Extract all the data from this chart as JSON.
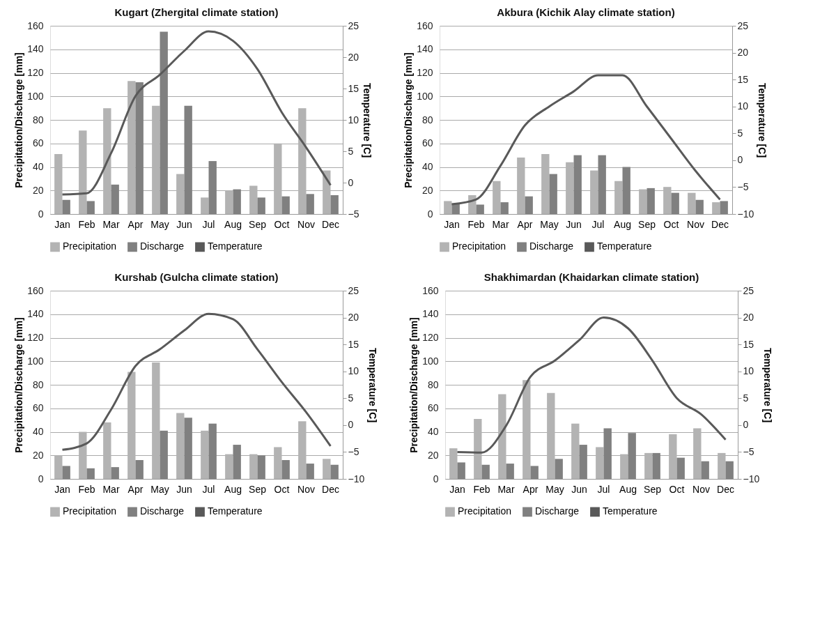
{
  "chart_data": [
    {
      "type": "bar",
      "title": "Kugart (Zhergital climate station)",
      "ylabel": "Precipitation/Discharge [mm]",
      "y2label": "Temperature [C]",
      "categories": [
        "Jan",
        "Feb",
        "Mar",
        "Apr",
        "May",
        "Jun",
        "Jul",
        "Aug",
        "Sep",
        "Oct",
        "Nov",
        "Dec"
      ],
      "series": [
        {
          "name": "Precipitation",
          "color": "#b3b3b3",
          "values": [
            51,
            71,
            90,
            113,
            92,
            34,
            14,
            20,
            24,
            60,
            90,
            37
          ]
        },
        {
          "name": "Discharge",
          "color": "#808080",
          "values": [
            12,
            11,
            25,
            112,
            155,
            92,
            45,
            21,
            14,
            15,
            17,
            16
          ]
        },
        {
          "name": "Temperature",
          "color": "#595959",
          "type": "line",
          "axis": "y2",
          "values": [
            -1.9,
            -1.7,
            4.7,
            13.8,
            17.2,
            21,
            24.1,
            22.6,
            18.1,
            11.2,
            5.6,
            -0.4
          ]
        }
      ],
      "ylim": [
        0,
        160
      ],
      "yticks": [
        0,
        20,
        40,
        60,
        80,
        100,
        120,
        140,
        160
      ],
      "y2lim": [
        -5,
        25
      ],
      "y2ticks": [
        -5,
        0,
        5,
        10,
        15,
        20,
        25
      ],
      "grid": "y",
      "legend": "bottom",
      "marker": "none"
    },
    {
      "type": "bar",
      "title": "Akbura (Kichik Alay climate station)",
      "ylabel": "Precipitation/Discharge [mm]",
      "y2label": "Temperature [C]",
      "categories": [
        "Jan",
        "Feb",
        "Mar",
        "Apr",
        "May",
        "Jun",
        "Jul",
        "Aug",
        "Sep",
        "Oct",
        "Nov",
        "Dec"
      ],
      "series": [
        {
          "name": "Precipitation",
          "color": "#b3b3b3",
          "values": [
            11,
            16,
            28,
            48,
            51,
            44,
            37,
            28,
            21,
            23,
            18,
            10
          ]
        },
        {
          "name": "Discharge",
          "color": "#808080",
          "values": [
            9,
            8,
            10,
            15,
            34,
            50,
            50,
            40,
            22,
            18,
            12,
            11
          ]
        },
        {
          "name": "Temperature",
          "color": "#595959",
          "type": "line",
          "axis": "y2",
          "values": [
            -8.2,
            -7.3,
            -1,
            6.5,
            10,
            12.8,
            15.8,
            15.8,
            10,
            4,
            -2,
            -7.3
          ]
        }
      ],
      "ylim": [
        0,
        160
      ],
      "yticks": [
        0,
        20,
        40,
        60,
        80,
        100,
        120,
        140,
        160
      ],
      "y2lim": [
        -10,
        25
      ],
      "y2ticks": [
        -10,
        -5,
        0,
        5,
        10,
        15,
        20,
        25
      ],
      "grid": "y",
      "legend": "bottom",
      "marker": "none"
    },
    {
      "type": "bar",
      "title": "Kurshab (Gulcha climate station)",
      "ylabel": "Precipitation/Discharge [mm]",
      "y2label": "Temperature [C]",
      "categories": [
        "Jan",
        "Feb",
        "Mar",
        "Apr",
        "May",
        "Jun",
        "Jul",
        "Aug",
        "Sep",
        "Oct",
        "Nov",
        "Dec"
      ],
      "series": [
        {
          "name": "Precipitation",
          "color": "#b3b3b3",
          "values": [
            20,
            40,
            48,
            91,
            99,
            56,
            41,
            21,
            21,
            27,
            49,
            17
          ]
        },
        {
          "name": "Discharge",
          "color": "#808080",
          "values": [
            11,
            9,
            10,
            16,
            41,
            52,
            47,
            29,
            20,
            16,
            13,
            12
          ]
        },
        {
          "name": "Temperature",
          "color": "#595959",
          "type": "line",
          "axis": "y2",
          "values": [
            -4.6,
            -3.4,
            2.9,
            11,
            14.1,
            17.6,
            20.7,
            19.7,
            14.1,
            8,
            2.4,
            -3.9
          ]
        }
      ],
      "ylim": [
        0,
        160
      ],
      "yticks": [
        0,
        20,
        40,
        60,
        80,
        100,
        120,
        140,
        160
      ],
      "y2lim": [
        -10,
        25
      ],
      "y2ticks": [
        -10,
        -5,
        0,
        5,
        10,
        15,
        20,
        25
      ],
      "grid": "y",
      "legend": "bottom",
      "marker": "none"
    },
    {
      "type": "bar",
      "title": "Shakhimardan (Khaidarkan climate station)",
      "ylabel": "Precipitation/Discharge [mm]",
      "y2label": "Temperature [C]",
      "categories": [
        "Jan",
        "Feb",
        "Mar",
        "Apr",
        "May",
        "Jun",
        "Jul",
        "Aug",
        "Sep",
        "Oct",
        "Nov",
        "Dec"
      ],
      "series": [
        {
          "name": "Precipitation",
          "color": "#b3b3b3",
          "values": [
            26,
            51,
            72,
            84,
            73,
            47,
            27,
            21,
            22,
            38,
            43,
            22
          ]
        },
        {
          "name": "Discharge",
          "color": "#808080",
          "values": [
            14,
            12,
            13,
            11,
            17,
            29,
            43,
            39,
            22,
            18,
            15,
            15
          ]
        },
        {
          "name": "Temperature",
          "color": "#595959",
          "type": "line",
          "axis": "y2",
          "values": [
            -5,
            -5.1,
            -0.1,
            9,
            12,
            15.8,
            20,
            18,
            12,
            5,
            2,
            -2.7
          ]
        }
      ],
      "ylim": [
        0,
        160
      ],
      "yticks": [
        0,
        20,
        40,
        60,
        80,
        100,
        120,
        140,
        160
      ],
      "y2lim": [
        -10,
        25
      ],
      "y2ticks": [
        -10,
        -5,
        0,
        5,
        10,
        15,
        20,
        25
      ],
      "grid": "y",
      "legend": "bottom",
      "marker": "none"
    }
  ]
}
